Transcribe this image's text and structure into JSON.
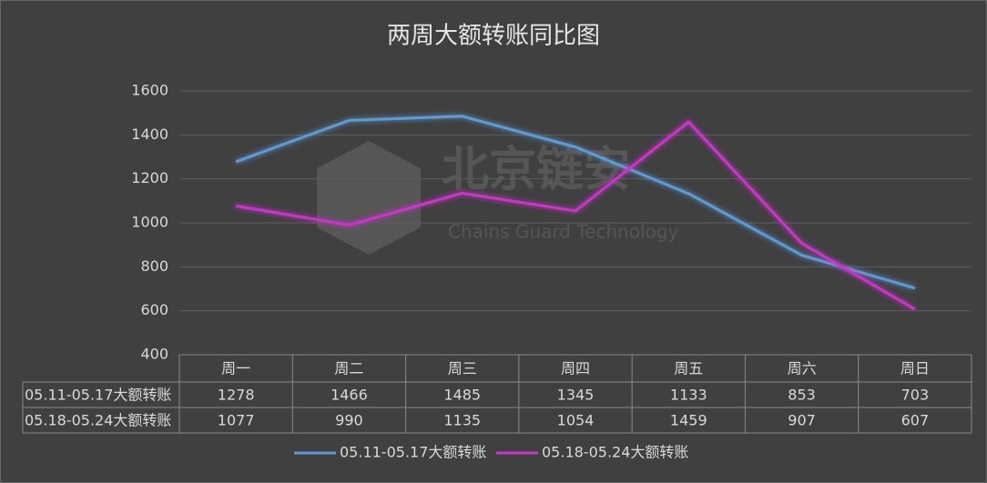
{
  "chart_data": {
    "type": "line",
    "title": "两周大额转账同比图",
    "categories": [
      "周一",
      "周二",
      "周三",
      "周四",
      "周五",
      "周六",
      "周日"
    ],
    "series": [
      {
        "name": "05.11-05.17大额转账",
        "color": "#5b9bd5",
        "values": [
          1278,
          1466,
          1485,
          1345,
          1133,
          853,
          703
        ]
      },
      {
        "name": "05.18-05.24大额转账",
        "color": "#cc33cc",
        "values": [
          1077,
          990,
          1135,
          1054,
          1459,
          907,
          607
        ]
      }
    ],
    "ylim": [
      400,
      1600
    ],
    "yticks": [
      400,
      600,
      800,
      1000,
      1200,
      1400,
      1600
    ],
    "grid": true,
    "legend": "bottom",
    "watermark": {
      "title": "北京链安",
      "subtitle": "Chains Guard Technology"
    }
  }
}
